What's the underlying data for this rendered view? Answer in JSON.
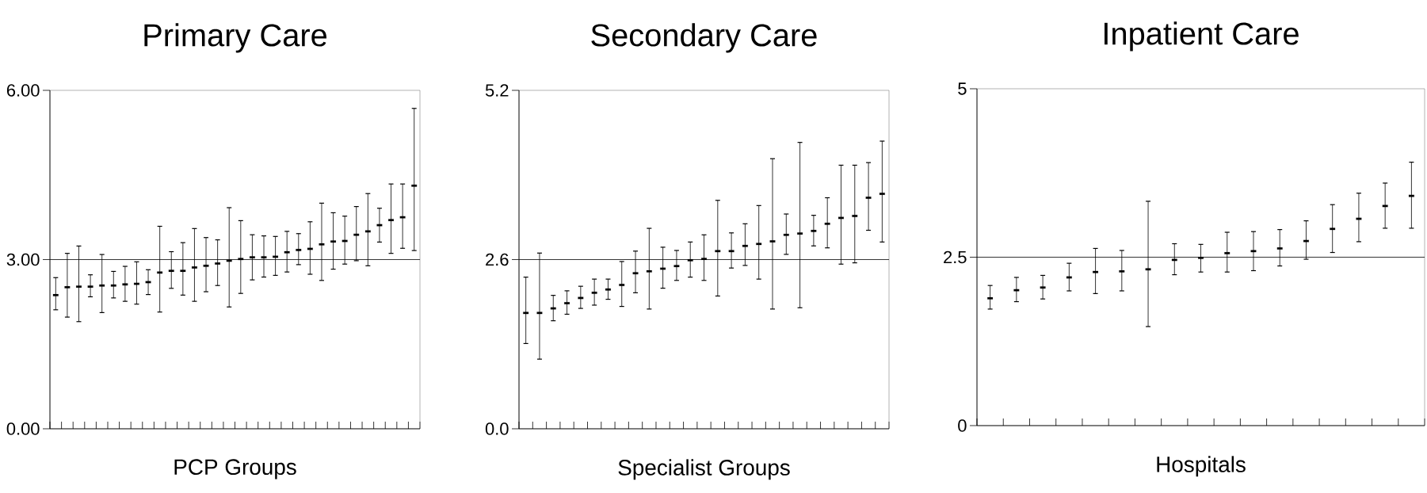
{
  "chart_data": [
    {
      "type": "scatter",
      "title": "Primary Care",
      "xlabel": "PCP Groups",
      "tick_labels": "y",
      "marker": "square",
      "categories": [
        null,
        null,
        null,
        null,
        null,
        null,
        null,
        null,
        null,
        null,
        null,
        null,
        null,
        null,
        null,
        null,
        null,
        null,
        null,
        null,
        null,
        null,
        null,
        null,
        null,
        null,
        null,
        null,
        null,
        null,
        null,
        null
      ],
      "values": [
        2.37,
        2.51,
        2.52,
        2.52,
        2.54,
        2.54,
        2.56,
        2.57,
        2.6,
        2.77,
        2.8,
        2.8,
        2.86,
        2.89,
        2.93,
        2.98,
        3.01,
        3.04,
        3.04,
        3.05,
        3.13,
        3.17,
        3.19,
        3.27,
        3.32,
        3.33,
        3.44,
        3.5,
        3.61,
        3.7,
        3.75,
        4.31
      ],
      "errors": [
        [
          2.11,
          2.68
        ],
        [
          1.98,
          3.11
        ],
        [
          1.9,
          3.24
        ],
        [
          2.34,
          2.73
        ],
        [
          2.06,
          3.09
        ],
        [
          2.32,
          2.79
        ],
        [
          2.26,
          2.88
        ],
        [
          2.21,
          2.96
        ],
        [
          2.38,
          2.82
        ],
        [
          2.07,
          3.59
        ],
        [
          2.49,
          3.14
        ],
        [
          2.37,
          3.3
        ],
        [
          2.26,
          3.55
        ],
        [
          2.43,
          3.39
        ],
        [
          2.54,
          3.35
        ],
        [
          2.16,
          3.92
        ],
        [
          2.4,
          3.69
        ],
        [
          2.64,
          3.44
        ],
        [
          2.69,
          3.42
        ],
        [
          2.72,
          3.41
        ],
        [
          2.78,
          3.5
        ],
        [
          2.91,
          3.46
        ],
        [
          2.74,
          3.67
        ],
        [
          2.63,
          4.0
        ],
        [
          2.83,
          3.83
        ],
        [
          2.92,
          3.77
        ],
        [
          2.98,
          3.94
        ],
        [
          2.89,
          4.17
        ],
        [
          3.31,
          3.91
        ],
        [
          3.11,
          4.34
        ],
        [
          3.2,
          4.34
        ],
        [
          3.16,
          5.68
        ]
      ],
      "ylim": [
        0,
        6
      ],
      "yticks": [
        {
          "value": 0,
          "label": "0.00"
        },
        {
          "value": 3,
          "label": "3.00"
        },
        {
          "value": 6,
          "label": "6.00"
        }
      ],
      "ref_lines": [
        {
          "axis": "y",
          "value": 3
        }
      ]
    },
    {
      "type": "scatter",
      "title": "Secondary Care",
      "xlabel": "Specialist Groups",
      "tick_labels": "y",
      "marker": "square",
      "categories": [
        null,
        null,
        null,
        null,
        null,
        null,
        null,
        null,
        null,
        null,
        null,
        null,
        null,
        null,
        null,
        null,
        null,
        null,
        null,
        null,
        null,
        null,
        null,
        null,
        null,
        null,
        null
      ],
      "values": [
        1.78,
        1.78,
        1.85,
        1.93,
        2.01,
        2.09,
        2.14,
        2.21,
        2.39,
        2.42,
        2.46,
        2.5,
        2.59,
        2.61,
        2.73,
        2.73,
        2.81,
        2.84,
        2.88,
        2.98,
        3.0,
        3.04,
        3.15,
        3.24,
        3.27,
        3.55,
        3.61
      ],
      "errors": [
        [
          1.31,
          2.33
        ],
        [
          1.07,
          2.7
        ],
        [
          1.66,
          2.05
        ],
        [
          1.76,
          2.12
        ],
        [
          1.85,
          2.19
        ],
        [
          1.9,
          2.3
        ],
        [
          1.99,
          2.3
        ],
        [
          1.88,
          2.57
        ],
        [
          2.09,
          2.73
        ],
        [
          1.84,
          3.08
        ],
        [
          2.16,
          2.79
        ],
        [
          2.28,
          2.74
        ],
        [
          2.33,
          2.87
        ],
        [
          2.28,
          2.98
        ],
        [
          2.04,
          3.51
        ],
        [
          2.47,
          3.01
        ],
        [
          2.51,
          3.15
        ],
        [
          2.3,
          3.43
        ],
        [
          1.84,
          4.15
        ],
        [
          2.68,
          3.3
        ],
        [
          1.86,
          4.4
        ],
        [
          2.81,
          3.28
        ],
        [
          2.78,
          3.55
        ],
        [
          2.53,
          4.05
        ],
        [
          2.55,
          4.05
        ],
        [
          3.05,
          4.09
        ],
        [
          2.87,
          4.42
        ]
      ],
      "ylim": [
        0,
        5.2
      ],
      "yticks": [
        {
          "value": 0,
          "label": "0.0"
        },
        2.6,
        5.2
      ],
      "ref_lines": [
        {
          "axis": "y",
          "value": 2.6
        }
      ]
    },
    {
      "type": "scatter",
      "title": "Inpatient Care",
      "xlabel": "Hospitals",
      "tick_labels": "y",
      "marker": "square",
      "categories": [
        null,
        null,
        null,
        null,
        null,
        null,
        null,
        null,
        null,
        null,
        null,
        null,
        null,
        null,
        null,
        null,
        null
      ],
      "values": [
        1.89,
        2.01,
        2.05,
        2.2,
        2.28,
        2.29,
        2.32,
        2.46,
        2.49,
        2.56,
        2.59,
        2.63,
        2.74,
        2.92,
        3.07,
        3.26,
        3.41
      ],
      "errors": [
        [
          1.73,
          2.08
        ],
        [
          1.84,
          2.2
        ],
        [
          1.88,
          2.23
        ],
        [
          2.0,
          2.41
        ],
        [
          1.96,
          2.63
        ],
        [
          2.0,
          2.6
        ],
        [
          1.47,
          3.33
        ],
        [
          2.24,
          2.7
        ],
        [
          2.28,
          2.69
        ],
        [
          2.28,
          2.87
        ],
        [
          2.3,
          2.88
        ],
        [
          2.37,
          2.91
        ],
        [
          2.47,
          3.04
        ],
        [
          2.57,
          3.28
        ],
        [
          2.73,
          3.45
        ],
        [
          2.93,
          3.6
        ],
        [
          2.93,
          3.91
        ]
      ],
      "ylim": [
        0,
        5
      ],
      "yticks": [
        0,
        2.5,
        5
      ],
      "ref_lines": [
        {
          "axis": "y",
          "value": 2.5
        }
      ]
    }
  ]
}
